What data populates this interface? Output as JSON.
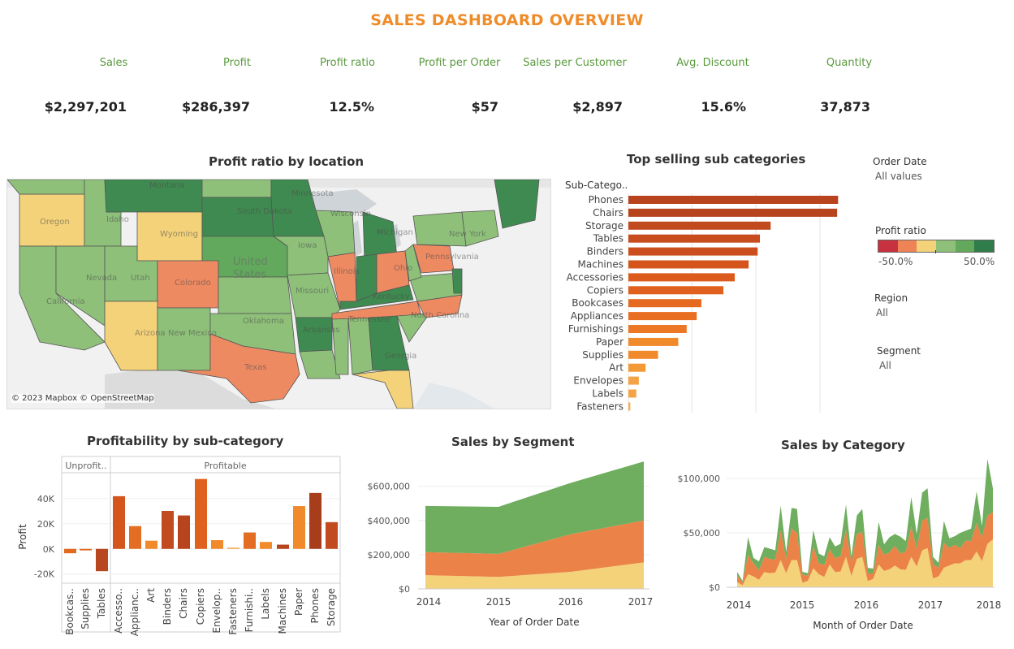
{
  "header": {
    "title": "SALES DASHBOARD  OVERVIEW"
  },
  "kpis": [
    {
      "label": "Sales",
      "value": "$2,297,201"
    },
    {
      "label": "Profit",
      "value": "$286,397"
    },
    {
      "label": "Profit ratio",
      "value": "12.5%"
    },
    {
      "label": "Profit per Order",
      "value": "$57"
    },
    {
      "label": "Sales per Customer",
      "value": "$2,897"
    },
    {
      "label": "Avg. Discount",
      "value": "15.6%"
    },
    {
      "label": "Quantity",
      "value": "37,873"
    }
  ],
  "map": {
    "title": "Profit ratio by location",
    "attribution": "© 2023 Mapbox © OpenStreetMap",
    "country_label": "United States",
    "state_labels": [
      "Oregon",
      "Idaho",
      "Wyoming",
      "South Dakota",
      "Minnesota",
      "Wisconsin",
      "Michigan",
      "Iowa",
      "Nevada",
      "Utah",
      "Colorado",
      "Illinois",
      "Ohio",
      "Pennsylvania",
      "New York",
      "California",
      "Missouri",
      "Kentucky",
      "Arizona",
      "New Mexico",
      "Oklahoma",
      "Arkansas",
      "Tennessee",
      "North Carolina",
      "Georgia",
      "Texas",
      "Montana"
    ]
  },
  "top_subcats": {
    "title": "Top selling sub categories",
    "header": "Sub-Catego..",
    "chart_data": {
      "type": "bar",
      "orientation": "horizontal",
      "title": "Top selling sub categories",
      "categories": [
        "Phones",
        "Chairs",
        "Storage",
        "Tables",
        "Binders",
        "Machines",
        "Accessories",
        "Copiers",
        "Bookcases",
        "Appliances",
        "Furnishings",
        "Paper",
        "Supplies",
        "Art",
        "Envelopes",
        "Labels",
        "Fasteners"
      ],
      "values": [
        330007,
        328449,
        223844,
        206966,
        203413,
        189239,
        167380,
        149528,
        114880,
        107532,
        91705,
        78479,
        46674,
        27119,
        16476,
        12486,
        3024
      ],
      "xlim": [
        0,
        350000
      ]
    }
  },
  "filters": {
    "order_date": {
      "title": "Order Date",
      "value": "All values"
    },
    "profit_ratio": {
      "title": "Profit ratio",
      "min": "-50.0%",
      "max": "50.0%",
      "colors": [
        "#c8313f",
        "#ee8355",
        "#f4d27a",
        "#8ec07a",
        "#62a85d",
        "#2e7d4a"
      ]
    },
    "region": {
      "title": "Region",
      "value": "All"
    },
    "segment": {
      "title": "Segment",
      "value": "All"
    }
  },
  "profitability": {
    "title": "Profitability by sub-category",
    "group_unprofitable": "Unprofit..",
    "group_profitable": "Profitable",
    "ylabel": "Profit",
    "chart_data": {
      "type": "bar",
      "title": "Profitability by sub-category",
      "ylabel": "Profit",
      "ylim": [
        -26000,
        58000
      ],
      "yticks": [
        "40K",
        "20K",
        "0K",
        "-20K"
      ],
      "ytick_values": [
        40000,
        20000,
        0,
        -20000
      ],
      "categories": [
        "Bookcas..",
        "Supplies",
        "Tables",
        "Accesso..",
        "Applianc..",
        "Art",
        "Binders",
        "Chairs",
        "Copiers",
        "Envelop..",
        "Fasteners",
        "Furnishi..",
        "Labels",
        "Machines",
        "Paper",
        "Phones",
        "Storage"
      ],
      "values": [
        -3473,
        -1189,
        -17725,
        41937,
        18138,
        6528,
        30222,
        26590,
        55618,
        6964,
        950,
        13059,
        5546,
        3385,
        34053,
        44516,
        21279
      ],
      "colors": [
        "#e06a1f",
        "#e06a1f",
        "#b8461e",
        "#d4541c",
        "#e36d22",
        "#f08a2b",
        "#c24a1f",
        "#b8441e",
        "#e0601d",
        "#f08a2b",
        "#f4a447",
        "#e36d22",
        "#f08a2b",
        "#b8441e",
        "#f08a2b",
        "#a83d1c",
        "#c24a1f"
      ]
    }
  },
  "segment": {
    "title": "Sales by Segment",
    "xlabel": "Year of Order Date",
    "chart_data": {
      "type": "area",
      "stacked": true,
      "title": "Sales by Segment",
      "xlabel": "Year of Order Date",
      "x": [
        "2014",
        "2015",
        "2016",
        "2017"
      ],
      "yticks": [
        "$600,000",
        "$400,000",
        "$200,000",
        "$0"
      ],
      "ytick_values": [
        600000,
        400000,
        200000,
        0
      ],
      "ylim": [
        0,
        760000
      ],
      "series": [
        {
          "values": [
            80000,
            70000,
            100000,
            155000
          ],
          "color": "#f4d27a"
        },
        {
          "values": [
            135000,
            135000,
            220000,
            245000
          ],
          "color": "#eb8348"
        },
        {
          "values": [
            270000,
            275000,
            300000,
            345000
          ],
          "color": "#6eae5e"
        }
      ]
    }
  },
  "category": {
    "title": "Sales by Category",
    "xlabel": "Month of Order Date",
    "chart_data": {
      "type": "area",
      "stacked": true,
      "title": "Sales by Category",
      "xlabel": "Month of Order Date",
      "x_start": "2014-01",
      "xticks": [
        "2014",
        "2015",
        "2016",
        "2017",
        "2018"
      ],
      "yticks": [
        "$100,000",
        "$50,000",
        "$0"
      ],
      "ytick_values": [
        100000,
        50000,
        0
      ],
      "ylim": [
        0,
        118000
      ],
      "series": [
        {
          "color": "#f4d27a",
          "values": [
            4900,
            1900,
            12000,
            10000,
            6800,
            14000,
            13000,
            13500,
            25000,
            13000,
            25000,
            25000,
            4200,
            6000,
            17500,
            12000,
            9500,
            21000,
            14000,
            14500,
            28000,
            10500,
            26000,
            28000,
            5800,
            7700,
            21000,
            15000,
            16500,
            20000,
            16500,
            16000,
            28000,
            19000,
            34000,
            36000,
            8000,
            10000,
            18000,
            20000,
            22000,
            22000,
            25000,
            25000,
            33000,
            24000,
            40000,
            44000
          ]
        },
        {
          "color": "#eb8348",
          "values": [
            6200,
            2500,
            18000,
            12000,
            9000,
            14000,
            13000,
            12000,
            27000,
            13000,
            29000,
            25000,
            7500,
            4500,
            20000,
            10000,
            11000,
            14000,
            13000,
            14000,
            25000,
            12500,
            23000,
            23000,
            7000,
            5000,
            18000,
            15000,
            15500,
            18000,
            14500,
            17000,
            28000,
            16500,
            27000,
            28000,
            13000,
            8000,
            23000,
            16000,
            17000,
            14000,
            18000,
            17500,
            26000,
            22000,
            26000,
            25000
          ]
        },
        {
          "color": "#6eae5e",
          "values": [
            3000,
            1500,
            16000,
            5000,
            8000,
            9000,
            9500,
            8500,
            23000,
            6500,
            19000,
            22000,
            2500,
            2500,
            15000,
            9000,
            8000,
            11000,
            10500,
            11500,
            23000,
            5500,
            17000,
            21000,
            5000,
            4500,
            21000,
            9500,
            14000,
            11000,
            15500,
            9500,
            27000,
            13500,
            26000,
            27000,
            7000,
            4500,
            20000,
            9000,
            8000,
            14000,
            9000,
            11500,
            29000,
            10500,
            52000,
            22000
          ]
        }
      ]
    }
  }
}
